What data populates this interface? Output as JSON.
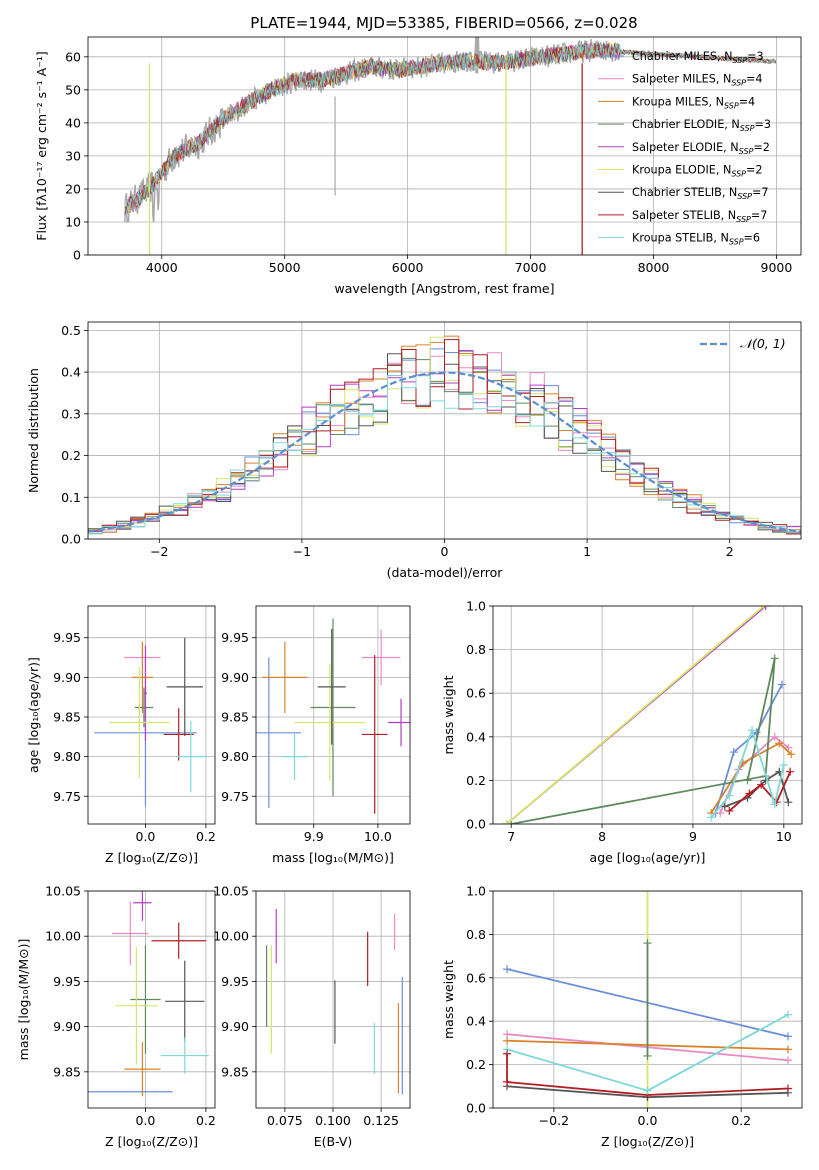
{
  "title": "PLATE=1944, MJD=53385, FIBERID=0566, z=0.028",
  "colors": {
    "Chabrier MILES": "#6b8fd9",
    "Salpeter MILES": "#e88cc3",
    "Kroupa MILES": "#d9822b",
    "Chabrier ELODIE": "#5f8a5f",
    "Salpeter ELODIE": "#b43fc6",
    "Kroupa ELODIE": "#d6e66a",
    "Chabrier STELIB": "#555555",
    "Salpeter STELIB": "#b01e23",
    "Kroupa STELIB": "#7fd8d8",
    "gaussian": "#5b8fd0"
  },
  "chart_data": [
    {
      "type": "line",
      "xlabel": "wavelength [Angstrom, rest frame]",
      "ylabel": "Flux [fλ10⁻¹⁷ erg cm⁻² s⁻¹ A⁻¹]",
      "xlim": [
        3400,
        9200
      ],
      "ylim": [
        0,
        66
      ],
      "xticks": [
        4000,
        5000,
        6000,
        7000,
        8000,
        9000
      ],
      "yticks": [
        0,
        10,
        20,
        30,
        40,
        50,
        60
      ],
      "legend_position": "right",
      "legend": [
        {
          "model": "Chabrier MILES",
          "label": "Chabrier MILES, N",
          "sub": "SSP",
          "n": "=3"
        },
        {
          "model": "Salpeter MILES",
          "label": "Salpeter MILES, N",
          "sub": "SSP",
          "n": "=4"
        },
        {
          "model": "Kroupa MILES",
          "label": "Kroupa MILES, N",
          "sub": "SSP",
          "n": "=4"
        },
        {
          "model": "Chabrier ELODIE",
          "label": "Chabrier ELODIE, N",
          "sub": "SSP",
          "n": "=3"
        },
        {
          "model": "Salpeter ELODIE",
          "label": "Salpeter ELODIE, N",
          "sub": "SSP",
          "n": "=2"
        },
        {
          "model": "Kroupa ELODIE",
          "label": "Kroupa ELODIE, N",
          "sub": "SSP",
          "n": "=2"
        },
        {
          "model": "Chabrier STELIB",
          "label": "Chabrier STELIB, N",
          "sub": "SSP",
          "n": "=7"
        },
        {
          "model": "Salpeter STELIB",
          "label": "Salpeter STELIB, N",
          "sub": "SSP",
          "n": "=7"
        },
        {
          "model": "Kroupa STELIB",
          "label": "Kroupa STELIB, N",
          "sub": "SSP",
          "n": "=6"
        }
      ],
      "continuum": {
        "x": [
          3700,
          3900,
          4100,
          4300,
          4500,
          4700,
          4900,
          5100,
          5300,
          5500,
          5700,
          5900,
          6100,
          6300,
          6500,
          6700,
          6900,
          7100,
          7300,
          7500,
          7700
        ],
        "y": [
          14,
          20,
          30,
          34,
          41,
          46,
          50,
          53,
          53,
          55,
          57,
          56,
          57,
          58,
          59,
          58,
          59,
          60,
          61,
          62,
          62
        ]
      },
      "spectrum_range": [
        3700,
        7730
      ],
      "model_range": [
        3700,
        9000
      ],
      "dropouts": [
        {
          "model": "Kroupa ELODIE",
          "x": 3900
        },
        {
          "model": "Kroupa ELODIE",
          "x": 6800
        },
        {
          "model": "Salpeter STELIB",
          "x": 7420
        }
      ]
    },
    {
      "type": "histogram",
      "xlabel": "(data-model)/error",
      "ylabel": "Normed distribution",
      "xlim": [
        -2.5,
        2.5
      ],
      "ylim": [
        0,
        0.52
      ],
      "xticks": [
        -2,
        -1,
        0,
        1,
        2
      ],
      "yticks": [
        0.0,
        0.1,
        0.2,
        0.3,
        0.4,
        0.5
      ],
      "bin_width": 0.1,
      "gaussian_label": "𝒩(0, 1)",
      "legend_position": "upper right"
    },
    {
      "type": "scatter",
      "xlabel": "Z [log₁₀(Z/Z⊙)]",
      "ylabel": "age  [log₁₀(age/yr)]",
      "xlim": [
        -0.19,
        0.23
      ],
      "ylim": [
        9.715,
        9.99
      ],
      "xticks": [
        0.0,
        0.2
      ],
      "yticks": [
        9.75,
        9.8,
        9.85,
        9.9,
        9.95
      ],
      "points": [
        {
          "model": "Chabrier MILES",
          "x": 0.0,
          "y": 9.83,
          "xerr": 0.17,
          "yerr": 0.093
        },
        {
          "model": "Salpeter MILES",
          "x": -0.01,
          "y": 9.925,
          "xerr": 0.06,
          "yerr": 0.02
        },
        {
          "model": "Kroupa MILES",
          "x": -0.01,
          "y": 9.9,
          "xerr": 0.035,
          "yerr": 0.045
        },
        {
          "model": "Chabrier ELODIE",
          "x": -0.005,
          "y": 9.862,
          "xerr": 0.03,
          "yerr": 0.025
        },
        {
          "model": "Salpeter ELODIE",
          "x": 0.0,
          "y": 9.88,
          "xerr": 0.005,
          "yerr": 0.06
        },
        {
          "model": "Kroupa ELODIE",
          "x": -0.02,
          "y": 9.843,
          "xerr": 0.1,
          "yerr": 0.07
        },
        {
          "model": "Chabrier STELIB",
          "x": 0.13,
          "y": 9.888,
          "xerr": 0.06,
          "yerr": 0.062
        },
        {
          "model": "Salpeter STELIB",
          "x": 0.11,
          "y": 9.828,
          "xerr": 0.05,
          "yerr": 0.033
        },
        {
          "model": "Kroupa STELIB",
          "x": 0.15,
          "y": 9.8,
          "xerr": 0.05,
          "yerr": 0.045
        }
      ]
    },
    {
      "type": "scatter",
      "xlabel": "mass [log₁₀(M/M⊙)]",
      "ylabel": "",
      "xlim": [
        9.81,
        10.05
      ],
      "ylim": [
        9.715,
        9.99
      ],
      "xticks": [
        9.9,
        10.0
      ],
      "yticks": [
        9.75,
        9.8,
        9.85,
        9.9,
        9.95
      ],
      "points": [
        {
          "model": "Chabrier MILES",
          "x": 9.83,
          "y": 9.83,
          "xerr": 0.05,
          "yerr": 0.095
        },
        {
          "model": "Salpeter MILES",
          "x": 10.005,
          "y": 9.925,
          "xerr": 0.03,
          "yerr": 0.035
        },
        {
          "model": "Kroupa MILES",
          "x": 9.855,
          "y": 9.9,
          "xerr": 0.035,
          "yerr": 0.045
        },
        {
          "model": "Chabrier ELODIE",
          "x": 9.93,
          "y": 9.862,
          "xerr": 0.035,
          "yerr": 0.112
        },
        {
          "model": "Salpeter ELODIE",
          "x": 10.036,
          "y": 9.843,
          "xerr": 0.02,
          "yerr": 0.03
        },
        {
          "model": "Kroupa ELODIE",
          "x": 9.925,
          "y": 9.843,
          "xerr": 0.055,
          "yerr": 0.074
        },
        {
          "model": "Chabrier STELIB",
          "x": 9.928,
          "y": 9.888,
          "xerr": 0.022,
          "yerr": 0.073
        },
        {
          "model": "Salpeter STELIB",
          "x": 9.995,
          "y": 9.828,
          "xerr": 0.02,
          "yerr": 0.1
        },
        {
          "model": "Kroupa STELIB",
          "x": 9.87,
          "y": 9.8,
          "xerr": 0.02,
          "yerr": 0.03
        }
      ]
    },
    {
      "type": "line",
      "xlabel": "age  [log₁₀(age/yr)]",
      "ylabel": "mass weight",
      "xlim": [
        6.8,
        10.2
      ],
      "ylim": [
        0,
        1.0
      ],
      "xticks": [
        7,
        8,
        9,
        10
      ],
      "yticks": [
        0.0,
        0.2,
        0.4,
        0.6,
        0.8,
        1.0
      ],
      "series": [
        {
          "model": "Chabrier MILES",
          "x": [
            9.25,
            9.45,
            9.7,
            9.98
          ],
          "y": [
            0.05,
            0.33,
            0.42,
            0.64
          ]
        },
        {
          "model": "Salpeter MILES",
          "x": [
            9.3,
            9.5,
            9.9,
            10.05
          ],
          "y": [
            0.05,
            0.25,
            0.4,
            0.35
          ]
        },
        {
          "model": "Kroupa MILES",
          "x": [
            9.2,
            9.55,
            9.95,
            10.08
          ],
          "y": [
            0.05,
            0.28,
            0.37,
            0.32
          ]
        },
        {
          "model": "Chabrier ELODIE",
          "x": [
            7.0,
            9.8,
            9.9,
            9.6
          ],
          "y": [
            0.0,
            0.22,
            0.76,
            0.2
          ]
        },
        {
          "model": "Salpeter ELODIE",
          "x": [
            6.95,
            9.8
          ],
          "y": [
            0.0,
            1.0
          ]
        },
        {
          "model": "Kroupa ELODIE",
          "x": [
            6.95,
            9.78
          ],
          "y": [
            0.0,
            1.0
          ]
        },
        {
          "model": "Chabrier STELIB",
          "x": [
            9.35,
            9.6,
            9.8,
            9.95,
            10.05
          ],
          "y": [
            0.08,
            0.12,
            0.2,
            0.24,
            0.1
          ]
        },
        {
          "model": "Salpeter STELIB",
          "x": [
            9.4,
            9.62,
            9.75,
            9.92,
            10.07
          ],
          "y": [
            0.06,
            0.14,
            0.18,
            0.1,
            0.24
          ]
        },
        {
          "model": "Kroupa STELIB",
          "x": [
            9.2,
            9.4,
            9.65,
            9.9,
            10.0
          ],
          "y": [
            0.03,
            0.13,
            0.43,
            0.09,
            0.27
          ]
        }
      ]
    },
    {
      "type": "scatter",
      "xlabel": "Z [log₁₀(Z/Z⊙)]",
      "ylabel": "mass [log₁₀(M/M⊙)]",
      "xlim": [
        -0.19,
        0.23
      ],
      "ylim": [
        9.81,
        10.05
      ],
      "xticks": [
        0.0,
        0.2
      ],
      "yticks": [
        9.85,
        9.9,
        9.95,
        10.0,
        10.05
      ],
      "points": [
        {
          "model": "Chabrier MILES",
          "x": -0.05,
          "y": 9.828,
          "xerr": 0.14,
          "yerr": 0.0
        },
        {
          "model": "Salpeter MILES",
          "x": -0.05,
          "y": 10.003,
          "xerr": 0.06,
          "yerr": 0.035
        },
        {
          "model": "Kroupa MILES",
          "x": -0.01,
          "y": 9.853,
          "xerr": 0.06,
          "yerr": 0.03
        },
        {
          "model": "Chabrier ELODIE",
          "x": 0.0,
          "y": 9.93,
          "xerr": 0.05,
          "yerr": 0.06
        },
        {
          "model": "Salpeter ELODIE",
          "x": -0.01,
          "y": 10.037,
          "xerr": 0.03,
          "yerr": 0.02
        },
        {
          "model": "Kroupa ELODIE",
          "x": -0.03,
          "y": 9.923,
          "xerr": 0.07,
          "yerr": 0.065
        },
        {
          "model": "Chabrier STELIB",
          "x": 0.13,
          "y": 9.928,
          "xerr": 0.065,
          "yerr": 0.045
        },
        {
          "model": "Salpeter STELIB",
          "x": 0.11,
          "y": 9.995,
          "xerr": 0.09,
          "yerr": 0.02
        },
        {
          "model": "Kroupa STELIB",
          "x": 0.13,
          "y": 9.868,
          "xerr": 0.08,
          "yerr": 0.02
        }
      ]
    },
    {
      "type": "errorbar",
      "xlabel": "E(B-V)",
      "ylabel": "",
      "xlim": [
        0.06,
        0.14
      ],
      "ylim": [
        9.81,
        10.05
      ],
      "xticks": [
        0.075,
        0.1,
        0.125
      ],
      "yticks": [
        9.85,
        9.9,
        9.95,
        10.0,
        10.05
      ],
      "points": [
        {
          "model": "Chabrier ELODIE",
          "x": 0.0655,
          "y": 9.945,
          "yerr": 0.045
        },
        {
          "model": "Kroupa ELODIE",
          "x": 0.068,
          "y": 9.93,
          "yerr": 0.06
        },
        {
          "model": "Salpeter ELODIE",
          "x": 0.0705,
          "y": 10.0,
          "yerr": 0.03
        },
        {
          "model": "Chabrier STELIB",
          "x": 0.101,
          "y": 9.916,
          "yerr": 0.035
        },
        {
          "model": "Salpeter STELIB",
          "x": 0.118,
          "y": 9.975,
          "yerr": 0.03
        },
        {
          "model": "Kroupa STELIB",
          "x": 0.1215,
          "y": 9.876,
          "yerr": 0.028
        },
        {
          "model": "Salpeter MILES",
          "x": 0.132,
          "y": 10.005,
          "yerr": 0.02
        },
        {
          "model": "Kroupa MILES",
          "x": 0.134,
          "y": 9.876,
          "yerr": 0.05
        },
        {
          "model": "Chabrier MILES",
          "x": 0.136,
          "y": 9.89,
          "yerr": 0.065
        }
      ]
    },
    {
      "type": "line",
      "xlabel": "Z [log₁₀(Z/Z⊙)]",
      "ylabel": "mass weight",
      "xlim": [
        -0.33,
        0.33
      ],
      "ylim": [
        0,
        1.0
      ],
      "xticks": [
        -0.2,
        0.0,
        0.2
      ],
      "yticks": [
        0.0,
        0.2,
        0.4,
        0.6,
        0.8,
        1.0
      ],
      "series": [
        {
          "model": "Chabrier MILES",
          "x": [
            -0.3,
            0.3
          ],
          "y": [
            0.64,
            0.33
          ]
        },
        {
          "model": "Salpeter MILES",
          "x": [
            -0.3,
            0.3
          ],
          "y": [
            0.34,
            0.22
          ]
        },
        {
          "model": "Kroupa MILES",
          "x": [
            -0.3,
            0.3
          ],
          "y": [
            0.31,
            0.27
          ]
        },
        {
          "model": "Kroupa ELODIE",
          "x": [
            0.0,
            0.0
          ],
          "y": [
            0.0,
            1.0
          ]
        },
        {
          "model": "Chabrier STELIB",
          "x": [
            -0.3,
            0.0,
            0.3
          ],
          "y": [
            0.1,
            0.05,
            0.07
          ]
        },
        {
          "model": "Salpeter STELIB",
          "x": [
            -0.3,
            0.0,
            0.3
          ],
          "y": [
            0.12,
            0.06,
            0.09
          ]
        },
        {
          "model": "Kroupa STELIB",
          "x": [
            -0.3,
            0.0,
            0.3
          ],
          "y": [
            0.27,
            0.08,
            0.43
          ]
        },
        {
          "model": "Chabrier ELODIE",
          "x": [
            0.0,
            0.0
          ],
          "y": [
            0.24,
            0.76
          ]
        },
        {
          "model": "Salpeter STELIB",
          "x": [
            -0.3,
            -0.3
          ],
          "y": [
            0.12,
            0.25
          ]
        }
      ]
    }
  ]
}
